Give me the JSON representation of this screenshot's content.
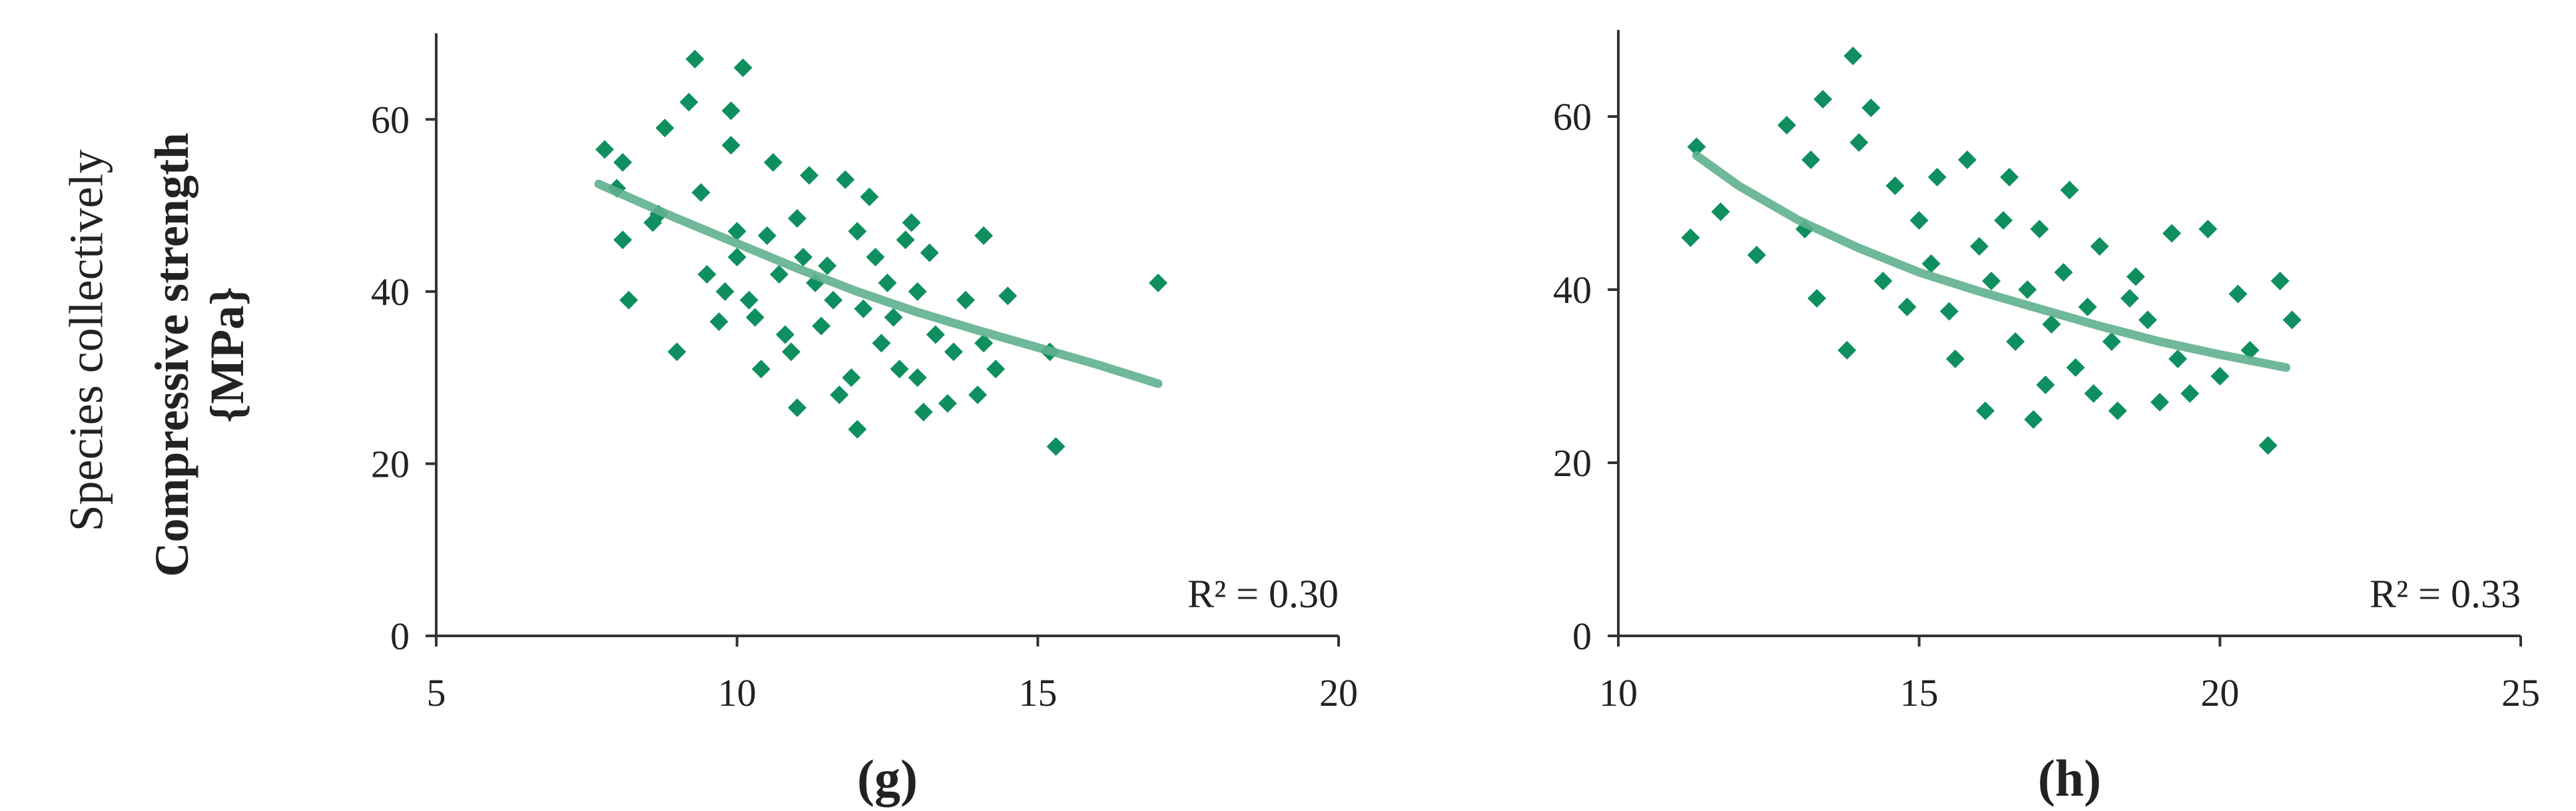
{
  "left_label": "Species collectively",
  "ylabel_line1": "Compressive strength",
  "ylabel_line2": "{MPa}",
  "colors": {
    "points": "#0f8f5f",
    "fit": "#5fb08f",
    "axis": "#333333"
  },
  "chart_data": [
    {
      "type": "scatter",
      "panel_label": "(g)",
      "r2_label": "R² = 0.30",
      "xlim": [
        5,
        20
      ],
      "ylim": [
        0,
        70
      ],
      "xticks": [
        5,
        10,
        15,
        20
      ],
      "yticks": [
        0,
        20,
        40,
        60
      ],
      "fit": [
        [
          7.7,
          52.5
        ],
        [
          9,
          48.5
        ],
        [
          10,
          45.6
        ],
        [
          11,
          42.7
        ],
        [
          12,
          40.0
        ],
        [
          13,
          37.6
        ],
        [
          14,
          35.5
        ],
        [
          15,
          33.5
        ],
        [
          16,
          31.5
        ],
        [
          17,
          29.3
        ]
      ],
      "points": [
        [
          7.8,
          56.5
        ],
        [
          8.0,
          52.0
        ],
        [
          8.1,
          55.0
        ],
        [
          8.1,
          46.0
        ],
        [
          8.2,
          39.0
        ],
        [
          8.6,
          48.0
        ],
        [
          8.7,
          49.0
        ],
        [
          8.8,
          59.0
        ],
        [
          9.0,
          33.0
        ],
        [
          9.2,
          62.0
        ],
        [
          9.3,
          67.0
        ],
        [
          9.4,
          51.5
        ],
        [
          9.5,
          42.0
        ],
        [
          9.7,
          36.5
        ],
        [
          9.8,
          40.0
        ],
        [
          9.9,
          61.0
        ],
        [
          9.9,
          57.0
        ],
        [
          10.0,
          44.0
        ],
        [
          10.0,
          47.0
        ],
        [
          10.1,
          66.0
        ],
        [
          10.2,
          39.0
        ],
        [
          10.3,
          37.0
        ],
        [
          10.4,
          31.0
        ],
        [
          10.5,
          46.5
        ],
        [
          10.6,
          55.0
        ],
        [
          10.7,
          42.0
        ],
        [
          10.8,
          35.0
        ],
        [
          10.9,
          33.0
        ],
        [
          11.0,
          26.5
        ],
        [
          11.0,
          48.5
        ],
        [
          11.1,
          44.0
        ],
        [
          11.2,
          53.5
        ],
        [
          11.3,
          41.0
        ],
        [
          11.4,
          36.0
        ],
        [
          11.5,
          43.0
        ],
        [
          11.6,
          39.0
        ],
        [
          11.7,
          28.0
        ],
        [
          11.8,
          53.0
        ],
        [
          11.9,
          30.0
        ],
        [
          12.0,
          47.0
        ],
        [
          12.0,
          24.0
        ],
        [
          12.1,
          38.0
        ],
        [
          12.2,
          51.0
        ],
        [
          12.3,
          44.0
        ],
        [
          12.4,
          34.0
        ],
        [
          12.5,
          41.0
        ],
        [
          12.6,
          37.0
        ],
        [
          12.7,
          31.0
        ],
        [
          12.8,
          46.0
        ],
        [
          12.9,
          48.0
        ],
        [
          13.0,
          40.0
        ],
        [
          13.0,
          30.0
        ],
        [
          13.1,
          26.0
        ],
        [
          13.2,
          44.5
        ],
        [
          13.3,
          35.0
        ],
        [
          13.5,
          27.0
        ],
        [
          13.6,
          33.0
        ],
        [
          13.8,
          39.0
        ],
        [
          14.0,
          28.0
        ],
        [
          14.1,
          46.5
        ],
        [
          14.1,
          34.0
        ],
        [
          14.3,
          31.0
        ],
        [
          14.5,
          39.5
        ],
        [
          15.2,
          33.0
        ],
        [
          15.3,
          22.0
        ],
        [
          17.0,
          41.0
        ]
      ]
    },
    {
      "type": "scatter",
      "panel_label": "(h)",
      "r2_label": "R² = 0.33",
      "xlim": [
        10,
        25
      ],
      "ylim": [
        0,
        70
      ],
      "xticks": [
        10,
        15,
        20,
        25
      ],
      "yticks": [
        0,
        20,
        40,
        60
      ],
      "fit": [
        [
          11.3,
          55.5
        ],
        [
          12,
          52.0
        ],
        [
          13,
          48.0
        ],
        [
          14,
          44.8
        ],
        [
          15,
          42.0
        ],
        [
          16,
          39.8
        ],
        [
          17,
          37.8
        ],
        [
          18,
          35.8
        ],
        [
          19,
          34.0
        ],
        [
          20,
          32.5
        ],
        [
          21.1,
          31.0
        ]
      ],
      "points": [
        [
          11.2,
          46.0
        ],
        [
          11.3,
          56.5
        ],
        [
          11.7,
          49.0
        ],
        [
          12.3,
          44.0
        ],
        [
          12.8,
          59.0
        ],
        [
          13.1,
          47.0
        ],
        [
          13.2,
          55.0
        ],
        [
          13.3,
          39.0
        ],
        [
          13.4,
          62.0
        ],
        [
          13.8,
          33.0
        ],
        [
          13.9,
          67.0
        ],
        [
          14.0,
          57.0
        ],
        [
          14.2,
          61.0
        ],
        [
          14.4,
          41.0
        ],
        [
          14.6,
          52.0
        ],
        [
          14.8,
          38.0
        ],
        [
          15.0,
          48.0
        ],
        [
          15.2,
          43.0
        ],
        [
          15.3,
          53.0
        ],
        [
          15.5,
          37.5
        ],
        [
          15.6,
          32.0
        ],
        [
          15.8,
          55.0
        ],
        [
          16.0,
          45.0
        ],
        [
          16.1,
          26.0
        ],
        [
          16.2,
          41.0
        ],
        [
          16.4,
          48.0
        ],
        [
          16.5,
          53.0
        ],
        [
          16.6,
          34.0
        ],
        [
          16.8,
          40.0
        ],
        [
          16.9,
          25.0
        ],
        [
          17.0,
          47.0
        ],
        [
          17.1,
          29.0
        ],
        [
          17.2,
          36.0
        ],
        [
          17.4,
          42.0
        ],
        [
          17.5,
          51.5
        ],
        [
          17.6,
          31.0
        ],
        [
          17.8,
          38.0
        ],
        [
          17.9,
          28.0
        ],
        [
          18.0,
          45.0
        ],
        [
          18.2,
          34.0
        ],
        [
          18.3,
          26.0
        ],
        [
          18.5,
          39.0
        ],
        [
          18.6,
          41.5
        ],
        [
          18.8,
          36.5
        ],
        [
          19.0,
          27.0
        ],
        [
          19.2,
          46.5
        ],
        [
          19.3,
          32.0
        ],
        [
          19.5,
          28.0
        ],
        [
          19.8,
          47.0
        ],
        [
          20.0,
          30.0
        ],
        [
          20.3,
          39.5
        ],
        [
          20.5,
          33.0
        ],
        [
          20.8,
          22.0
        ],
        [
          21.0,
          41.0
        ],
        [
          21.2,
          36.5
        ]
      ]
    }
  ]
}
